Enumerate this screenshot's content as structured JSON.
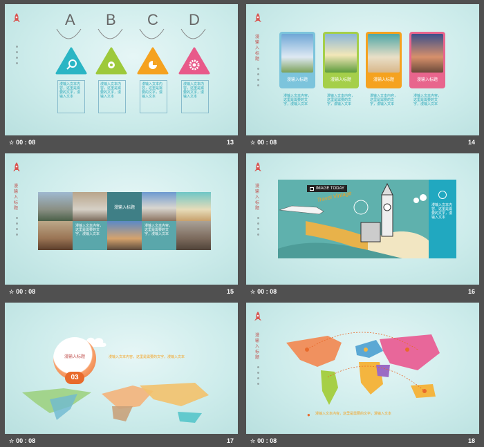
{
  "title_cn": "漫输入标题",
  "body_cn": "漫输入文本内容，这里是需要的文字，漫输入文本",
  "time_label": "00 : 08",
  "colors": {
    "teal": "#2ab5c4",
    "green": "#9dc93b",
    "orange": "#f5a21f",
    "pink": "#e85a8a",
    "bar": "#505050"
  },
  "slides": [
    {
      "number": "13",
      "letters": [
        "A",
        "B",
        "C",
        "D"
      ],
      "icons": [
        "search-icon",
        "settings-icon",
        "pie-chart-icon",
        "gear-icon"
      ]
    },
    {
      "number": "14",
      "cards": [
        "漫输入标题",
        "漫输入标题",
        "漫输入标题",
        "漫输入标题"
      ]
    },
    {
      "number": "15",
      "center_label": "漫输入标题"
    },
    {
      "number": "16",
      "badge": "IMAGE TODAY",
      "tagline": "Travel Vintage"
    },
    {
      "number": "17",
      "bubble_label": "漫输入标题",
      "bubble_num": "03"
    },
    {
      "number": "18"
    }
  ]
}
